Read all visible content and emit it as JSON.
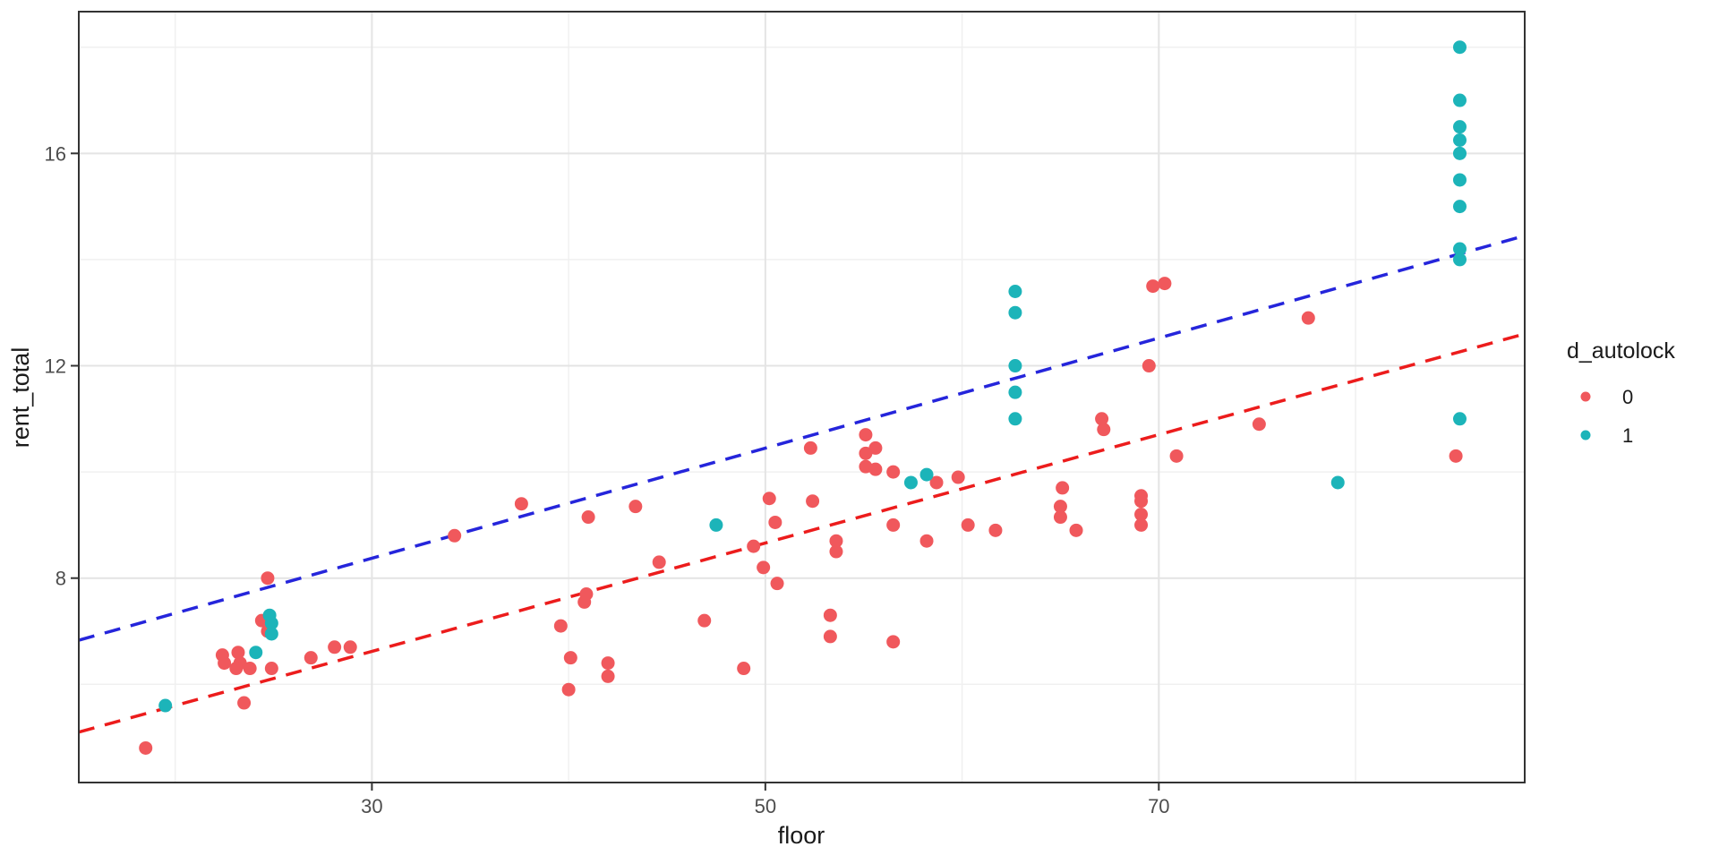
{
  "figure": {
    "background": "#ffffff"
  },
  "chart_data": {
    "type": "scatter",
    "title": "",
    "xlabel": "floor",
    "ylabel": "rent_total",
    "xlim": [
      15.1,
      88.6
    ],
    "ylim": [
      4.15,
      18.67
    ],
    "x_major_ticks": [
      30,
      50,
      70
    ],
    "y_major_ticks": [
      8,
      12,
      16
    ],
    "x_minor_ticks": [
      20,
      40,
      60,
      80
    ],
    "y_minor_ticks": [
      6,
      10,
      14,
      18
    ],
    "grid": "on",
    "panel_border_color": "#333333",
    "major_grid_color": "#e4e4e4",
    "minor_grid_color": "#f0f0f0",
    "tick_color": "#333333",
    "legend": {
      "position": "right",
      "title": "d_autolock",
      "entries": [
        {
          "label": "0",
          "color": "#f0585c"
        },
        {
          "label": "1",
          "color": "#1cb4b9"
        }
      ]
    },
    "series": [
      {
        "name": "0",
        "color": "#f0585c",
        "marker_radius": 7.5,
        "points": [
          [
            18.5,
            4.8
          ],
          [
            23.5,
            5.65
          ],
          [
            22.4,
            6.55
          ],
          [
            22.5,
            6.4
          ],
          [
            23.2,
            6.6
          ],
          [
            23.3,
            6.4
          ],
          [
            23.1,
            6.3
          ],
          [
            23.8,
            6.3
          ],
          [
            24.9,
            6.3
          ],
          [
            26.9,
            6.5
          ],
          [
            28.1,
            6.7
          ],
          [
            28.9,
            6.7
          ],
          [
            24.4,
            7.2
          ],
          [
            24.7,
            7.0
          ],
          [
            24.7,
            8.0
          ],
          [
            34.2,
            8.8
          ],
          [
            37.6,
            9.4
          ],
          [
            41.0,
            9.15
          ],
          [
            43.4,
            9.35
          ],
          [
            39.6,
            7.1
          ],
          [
            40.9,
            7.7
          ],
          [
            40.8,
            7.55
          ],
          [
            40.1,
            6.5
          ],
          [
            42.0,
            6.4
          ],
          [
            42.0,
            6.15
          ],
          [
            40.0,
            5.9
          ],
          [
            44.6,
            8.3
          ],
          [
            46.9,
            7.2
          ],
          [
            48.9,
            6.3
          ],
          [
            49.4,
            8.6
          ],
          [
            49.9,
            8.2
          ],
          [
            50.2,
            9.5
          ],
          [
            50.5,
            9.05
          ],
          [
            50.6,
            7.9
          ],
          [
            52.3,
            10.45
          ],
          [
            52.4,
            9.45
          ],
          [
            53.6,
            8.7
          ],
          [
            53.6,
            8.5
          ],
          [
            53.3,
            7.3
          ],
          [
            53.3,
            6.9
          ],
          [
            55.1,
            10.7
          ],
          [
            55.6,
            10.45
          ],
          [
            55.1,
            10.35
          ],
          [
            55.1,
            10.1
          ],
          [
            55.6,
            10.05
          ],
          [
            56.5,
            10.0
          ],
          [
            58.7,
            9.8
          ],
          [
            59.8,
            9.9
          ],
          [
            56.5,
            9.0
          ],
          [
            58.2,
            8.7
          ],
          [
            56.5,
            6.8
          ],
          [
            60.3,
            9.0
          ],
          [
            61.7,
            8.9
          ],
          [
            65.1,
            9.7
          ],
          [
            65.0,
            9.35
          ],
          [
            65.0,
            9.15
          ],
          [
            65.8,
            8.9
          ],
          [
            67.1,
            11.0
          ],
          [
            67.2,
            10.8
          ],
          [
            69.7,
            13.5
          ],
          [
            70.3,
            13.55
          ],
          [
            69.5,
            12.0
          ],
          [
            70.9,
            10.3
          ],
          [
            69.1,
            9.55
          ],
          [
            69.1,
            9.45
          ],
          [
            69.1,
            9.2
          ],
          [
            69.1,
            9.0
          ],
          [
            75.1,
            10.9
          ],
          [
            77.6,
            12.9
          ],
          [
            85.1,
            10.3
          ]
        ]
      },
      {
        "name": "1",
        "color": "#1cb4b9",
        "marker_radius": 7.5,
        "points": [
          [
            19.5,
            5.6
          ],
          [
            24.1,
            6.6
          ],
          [
            24.8,
            7.3
          ],
          [
            24.9,
            7.15
          ],
          [
            24.9,
            6.95
          ],
          [
            47.5,
            9.0
          ],
          [
            57.4,
            9.8
          ],
          [
            58.2,
            9.95
          ],
          [
            62.7,
            13.4
          ],
          [
            62.7,
            13.0
          ],
          [
            62.7,
            12.0
          ],
          [
            62.7,
            11.5
          ],
          [
            62.7,
            11.0
          ],
          [
            79.1,
            9.8
          ],
          [
            85.3,
            18.0
          ],
          [
            85.3,
            17.0
          ],
          [
            85.3,
            16.5
          ],
          [
            85.3,
            16.25
          ],
          [
            85.3,
            16.0
          ],
          [
            85.3,
            15.5
          ],
          [
            85.3,
            15.0
          ],
          [
            85.3,
            14.2
          ],
          [
            85.3,
            14.0
          ],
          [
            85.3,
            11.0
          ]
        ]
      }
    ],
    "fit_lines": [
      {
        "name": "fit-d_autolock-0",
        "color": "#ec1c1c",
        "style": "dashed",
        "x0": 15.1,
        "y0": 5.1,
        "x1": 88.6,
        "y1": 12.6
      },
      {
        "name": "fit-d_autolock-1",
        "color": "#2525db",
        "style": "dashed",
        "x0": 15.1,
        "y0": 6.83,
        "x1": 88.6,
        "y1": 14.45
      }
    ]
  }
}
